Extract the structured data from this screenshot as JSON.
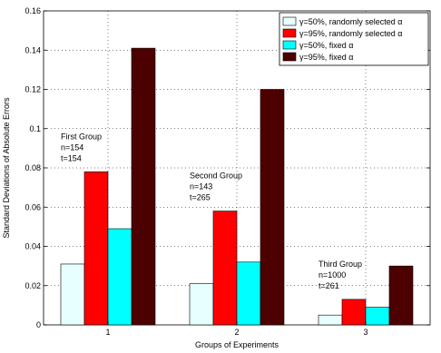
{
  "chart_data": {
    "type": "bar",
    "categories": [
      "1",
      "2",
      "3"
    ],
    "xlabel": "Groups of Experiments",
    "ylabel": "Standard Deviations of Absolute Errors",
    "ylim": [
      0,
      0.16
    ],
    "yticks": [
      "0",
      "0.02",
      "0.04",
      "0.06",
      "0.08",
      "0.1",
      "0.12",
      "0.14",
      "0.16"
    ],
    "grid": true,
    "legend_position": "top-right",
    "series": [
      {
        "name": "γ=50%, randomly selected α",
        "color": "#e8ffff",
        "values": [
          0.031,
          0.021,
          0.005
        ]
      },
      {
        "name": "γ=95%, randomly selected α",
        "color": "#ff0000",
        "values": [
          0.078,
          0.058,
          0.013
        ]
      },
      {
        "name": "γ=50%, fixed α",
        "color": "#00ffff",
        "values": [
          0.049,
          0.032,
          0.009
        ]
      },
      {
        "name": "γ=95%, fixed α",
        "color": "#4d0000",
        "values": [
          0.141,
          0.12,
          0.03
        ]
      }
    ],
    "annotations": [
      {
        "lines": [
          "First Group",
          "n=154",
          "t=154"
        ],
        "category": "1"
      },
      {
        "lines": [
          "Second Group",
          "n=143",
          "t=265"
        ],
        "category": "2"
      },
      {
        "lines": [
          "Third Group",
          "n=1000",
          "t=261"
        ],
        "category": "3"
      }
    ]
  }
}
